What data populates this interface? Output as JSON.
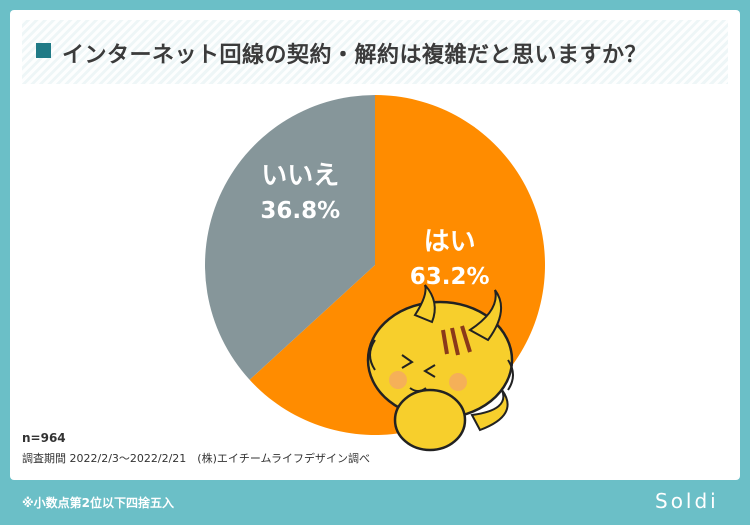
{
  "title": "インターネット回線の契約・解約は複雑だと思いますか？",
  "chart_data": {
    "type": "pie",
    "slices": [
      {
        "label": "はい",
        "value": 63.2,
        "display": "63.2%",
        "color": "#ff8c00"
      },
      {
        "label": "いいえ",
        "value": 36.8,
        "display": "36.8%",
        "color": "#86969a"
      }
    ]
  },
  "meta": {
    "n": "n=964",
    "survey": "調査期間 2022/2/3〜2022/2/21　(株)エイチームライフデザイン調べ"
  },
  "footer": {
    "note": "※小数点第2位以下四捨五入",
    "logo": "Soldi"
  }
}
